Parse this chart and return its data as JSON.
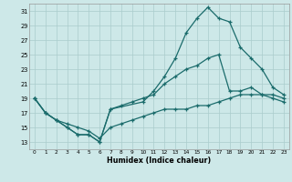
{
  "xlabel": "Humidex (Indice chaleur)",
  "bg_color": "#cde8e8",
  "grid_color": "#aacccc",
  "line_color": "#1a6b6b",
  "xlim": [
    -0.5,
    23.5
  ],
  "ylim": [
    12.0,
    32.0
  ],
  "xticks": [
    0,
    1,
    2,
    3,
    4,
    5,
    6,
    7,
    8,
    9,
    10,
    11,
    12,
    13,
    14,
    15,
    16,
    17,
    18,
    19,
    20,
    21,
    22,
    23
  ],
  "yticks": [
    13,
    15,
    17,
    19,
    21,
    23,
    25,
    27,
    29,
    31
  ],
  "curve_high_x": [
    0,
    1,
    2,
    3,
    4,
    5,
    6,
    7,
    10,
    11,
    12,
    13,
    14,
    15,
    16,
    17,
    18,
    19,
    20,
    21,
    22,
    23
  ],
  "curve_high_y": [
    19,
    17,
    16,
    15,
    14,
    14,
    13,
    17.5,
    18.5,
    20,
    22,
    24.5,
    28,
    30,
    31.5,
    30,
    29.5,
    26,
    24.5,
    23,
    20.5,
    19.5
  ],
  "curve_mid_x": [
    0,
    1,
    2,
    3,
    4,
    5,
    6,
    7,
    8,
    9,
    10,
    11,
    12,
    13,
    14,
    15,
    16,
    17,
    18,
    19,
    20,
    21,
    22,
    23
  ],
  "curve_mid_y": [
    19,
    17,
    16,
    15,
    14,
    14,
    13,
    17.5,
    18,
    18.5,
    19,
    19.5,
    21,
    22,
    23,
    23.5,
    24.5,
    25,
    20,
    20,
    20.5,
    19.5,
    19.5,
    19
  ],
  "curve_low_x": [
    0,
    1,
    2,
    3,
    4,
    5,
    6,
    7,
    8,
    9,
    10,
    11,
    12,
    13,
    14,
    15,
    16,
    17,
    18,
    19,
    20,
    21,
    22,
    23
  ],
  "curve_low_y": [
    19,
    17,
    16,
    15.5,
    15,
    14.5,
    13.5,
    15,
    15.5,
    16,
    16.5,
    17,
    17.5,
    17.5,
    17.5,
    18,
    18,
    18.5,
    19,
    19.5,
    19.5,
    19.5,
    19,
    18.5
  ]
}
